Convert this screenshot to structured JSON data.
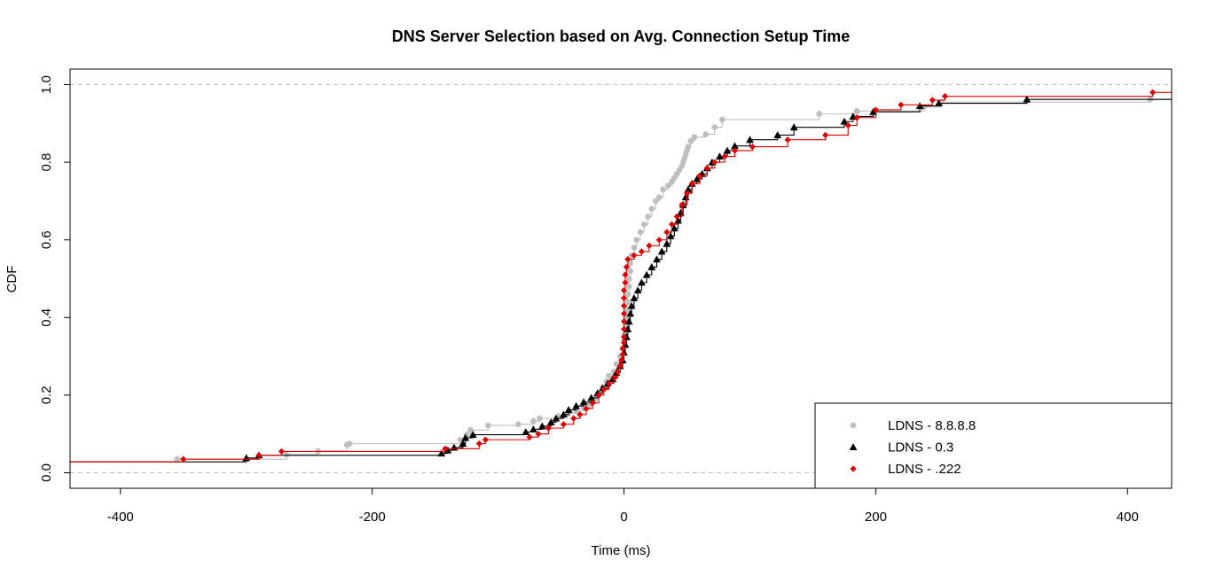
{
  "chart_data": {
    "type": "line",
    "subtype": "ecdf-step",
    "title": "DNS Server Selection based on Avg. Connection Setup Time",
    "xlabel": "Time (ms)",
    "ylabel": "CDF",
    "xlim": [
      -440,
      435
    ],
    "ylim": [
      -0.04,
      1.04
    ],
    "xticks": [
      -400,
      -200,
      0,
      200,
      400
    ],
    "xtick_labels": [
      "-400",
      "-200",
      "0",
      "200",
      "400"
    ],
    "yticks": [
      0.0,
      0.2,
      0.4,
      0.6,
      0.8,
      1.0
    ],
    "ytick_labels": [
      "0.0",
      "0.2",
      "0.4",
      "0.6",
      "0.8",
      "1.0"
    ],
    "reference_lines": [
      0.0,
      1.0
    ],
    "legend_position": "bottom-right",
    "grid": false,
    "series": [
      {
        "name": "LDNS - 8.8.8.8",
        "color": "#bebebe",
        "marker": "circle",
        "points": [
          [
            -355,
            0.035
          ],
          [
            -268,
            0.047
          ],
          [
            -243,
            0.056
          ],
          [
            -220,
            0.072
          ],
          [
            -218,
            0.075
          ],
          [
            -130,
            0.085
          ],
          [
            -125,
            0.098
          ],
          [
            -122,
            0.11
          ],
          [
            -108,
            0.122
          ],
          [
            -84,
            0.125
          ],
          [
            -72,
            0.133
          ],
          [
            -67,
            0.14
          ],
          [
            -52,
            0.146
          ],
          [
            -44,
            0.153
          ],
          [
            -38,
            0.16
          ],
          [
            -32,
            0.168
          ],
          [
            -27,
            0.176
          ],
          [
            -23,
            0.19
          ],
          [
            -20,
            0.205
          ],
          [
            -17,
            0.22
          ],
          [
            -14,
            0.235
          ],
          [
            -12,
            0.25
          ],
          [
            -8,
            0.26
          ],
          [
            -6,
            0.28
          ],
          [
            -3,
            0.3
          ],
          [
            -1,
            0.32
          ],
          [
            0,
            0.34
          ],
          [
            0,
            0.355
          ],
          [
            1,
            0.37
          ],
          [
            1,
            0.385
          ],
          [
            2,
            0.4
          ],
          [
            2,
            0.42
          ],
          [
            3,
            0.44
          ],
          [
            3,
            0.46
          ],
          [
            4,
            0.48
          ],
          [
            4,
            0.5
          ],
          [
            5,
            0.52
          ],
          [
            5,
            0.54
          ],
          [
            6,
            0.56
          ],
          [
            8,
            0.58
          ],
          [
            10,
            0.6
          ],
          [
            13,
            0.62
          ],
          [
            16,
            0.64
          ],
          [
            19,
            0.66
          ],
          [
            22,
            0.68
          ],
          [
            25,
            0.7
          ],
          [
            28,
            0.71
          ],
          [
            31,
            0.73
          ],
          [
            35,
            0.74
          ],
          [
            38,
            0.75
          ],
          [
            40,
            0.76
          ],
          [
            42,
            0.77
          ],
          [
            44,
            0.78
          ],
          [
            46,
            0.79
          ],
          [
            47,
            0.8
          ],
          [
            48,
            0.81
          ],
          [
            49,
            0.82
          ],
          [
            50,
            0.83
          ],
          [
            51,
            0.84
          ],
          [
            53,
            0.855
          ],
          [
            56,
            0.865
          ],
          [
            65,
            0.872
          ],
          [
            72,
            0.89
          ],
          [
            78,
            0.91
          ],
          [
            155,
            0.925
          ],
          [
            185,
            0.932
          ],
          [
            238,
            0.942
          ],
          [
            252,
            0.955
          ],
          [
            418,
            0.962
          ]
        ]
      },
      {
        "name": "LDNS - 0.3",
        "color": "#000000",
        "marker": "triangle",
        "points": [
          [
            -300,
            0.038
          ],
          [
            -290,
            0.045
          ],
          [
            -145,
            0.05
          ],
          [
            -140,
            0.058
          ],
          [
            -135,
            0.065
          ],
          [
            -128,
            0.075
          ],
          [
            -126,
            0.09
          ],
          [
            -120,
            0.098
          ],
          [
            -78,
            0.105
          ],
          [
            -72,
            0.112
          ],
          [
            -65,
            0.12
          ],
          [
            -58,
            0.13
          ],
          [
            -54,
            0.14
          ],
          [
            -48,
            0.15
          ],
          [
            -44,
            0.162
          ],
          [
            -38,
            0.172
          ],
          [
            -32,
            0.182
          ],
          [
            -26,
            0.193
          ],
          [
            -21,
            0.205
          ],
          [
            -17,
            0.218
          ],
          [
            -13,
            0.23
          ],
          [
            -9,
            0.242
          ],
          [
            -6,
            0.258
          ],
          [
            -3,
            0.275
          ],
          [
            -1,
            0.29
          ],
          [
            0,
            0.31
          ],
          [
            1,
            0.33
          ],
          [
            2,
            0.35
          ],
          [
            3,
            0.37
          ],
          [
            4,
            0.39
          ],
          [
            5,
            0.41
          ],
          [
            6,
            0.43
          ],
          [
            8,
            0.45
          ],
          [
            11,
            0.47
          ],
          [
            14,
            0.49
          ],
          [
            18,
            0.51
          ],
          [
            22,
            0.53
          ],
          [
            26,
            0.55
          ],
          [
            30,
            0.57
          ],
          [
            34,
            0.59
          ],
          [
            37,
            0.61
          ],
          [
            40,
            0.63
          ],
          [
            43,
            0.65
          ],
          [
            45,
            0.67
          ],
          [
            47,
            0.69
          ],
          [
            49,
            0.71
          ],
          [
            51,
            0.73
          ],
          [
            54,
            0.745
          ],
          [
            58,
            0.757
          ],
          [
            62,
            0.77
          ],
          [
            66,
            0.785
          ],
          [
            70,
            0.8
          ],
          [
            76,
            0.815
          ],
          [
            82,
            0.83
          ],
          [
            88,
            0.842
          ],
          [
            100,
            0.858
          ],
          [
            122,
            0.87
          ],
          [
            135,
            0.89
          ],
          [
            175,
            0.905
          ],
          [
            182,
            0.918
          ],
          [
            198,
            0.93
          ],
          [
            235,
            0.945
          ],
          [
            250,
            0.952
          ],
          [
            320,
            0.962
          ]
        ]
      },
      {
        "name": "LDNS - .222",
        "color": "#e00000",
        "marker": "diamond",
        "points": [
          [
            -350,
            0.035
          ],
          [
            -290,
            0.045
          ],
          [
            -272,
            0.055
          ],
          [
            -142,
            0.062
          ],
          [
            -115,
            0.075
          ],
          [
            -110,
            0.085
          ],
          [
            -75,
            0.092
          ],
          [
            -68,
            0.1
          ],
          [
            -60,
            0.115
          ],
          [
            -48,
            0.125
          ],
          [
            -40,
            0.14
          ],
          [
            -35,
            0.15
          ],
          [
            -30,
            0.165
          ],
          [
            -25,
            0.18
          ],
          [
            -20,
            0.2
          ],
          [
            -16,
            0.215
          ],
          [
            -12,
            0.23
          ],
          [
            -8,
            0.245
          ],
          [
            -5,
            0.26
          ],
          [
            -3,
            0.275
          ],
          [
            -2,
            0.29
          ],
          [
            -1,
            0.305
          ],
          [
            -1,
            0.32
          ],
          [
            0,
            0.335
          ],
          [
            0,
            0.35
          ],
          [
            0,
            0.37
          ],
          [
            0,
            0.39
          ],
          [
            0,
            0.41
          ],
          [
            0,
            0.43
          ],
          [
            0,
            0.45
          ],
          [
            0,
            0.47
          ],
          [
            1,
            0.49
          ],
          [
            1,
            0.51
          ],
          [
            2,
            0.53
          ],
          [
            3,
            0.55
          ],
          [
            8,
            0.56
          ],
          [
            14,
            0.57
          ],
          [
            20,
            0.585
          ],
          [
            28,
            0.6
          ],
          [
            34,
            0.62
          ],
          [
            38,
            0.64
          ],
          [
            42,
            0.66
          ],
          [
            46,
            0.69
          ],
          [
            50,
            0.72
          ],
          [
            54,
            0.745
          ],
          [
            60,
            0.765
          ],
          [
            66,
            0.785
          ],
          [
            72,
            0.8
          ],
          [
            80,
            0.815
          ],
          [
            88,
            0.83
          ],
          [
            102,
            0.84
          ],
          [
            130,
            0.858
          ],
          [
            160,
            0.87
          ],
          [
            178,
            0.895
          ],
          [
            185,
            0.915
          ],
          [
            200,
            0.935
          ],
          [
            220,
            0.948
          ],
          [
            245,
            0.96
          ],
          [
            255,
            0.97
          ],
          [
            420,
            0.98
          ]
        ]
      }
    ]
  }
}
